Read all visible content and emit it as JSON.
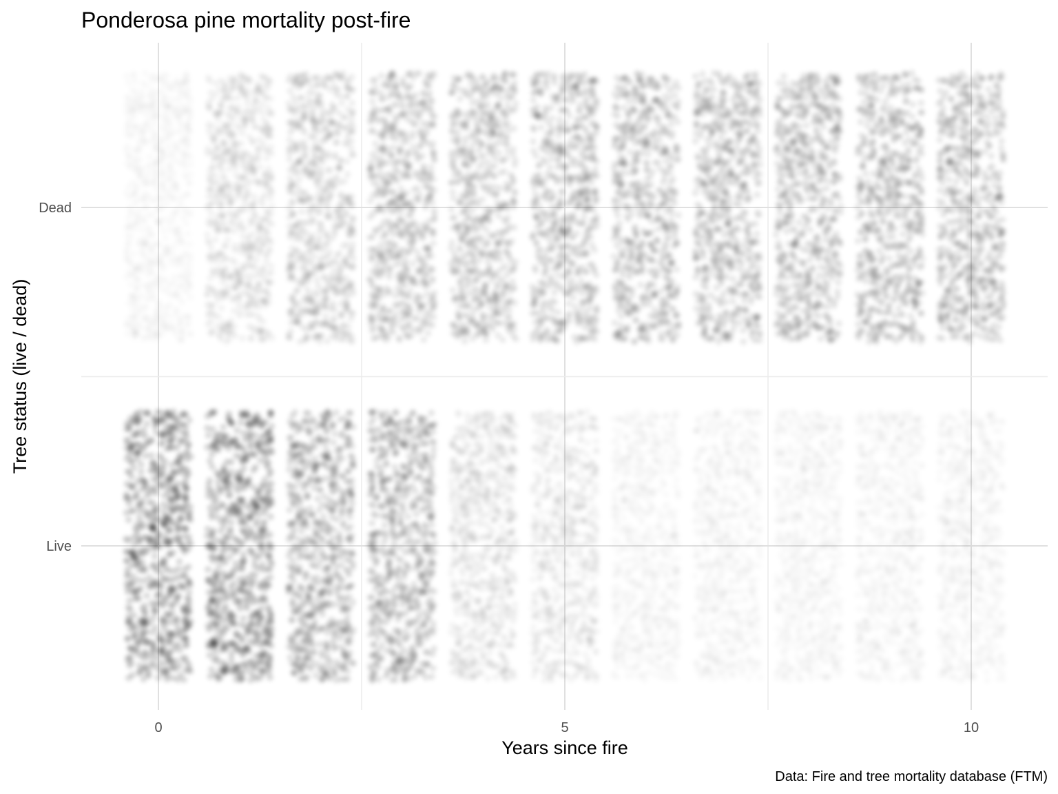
{
  "chart_data": {
    "type": "scatter",
    "title": "Ponderosa pine mortality post-fire",
    "xlabel": "Years since fire",
    "ylabel": "Tree status (live / dead)",
    "caption": "Data: Fire and tree mortality database (FTM)",
    "x_ticks": [
      "0",
      "5",
      "10"
    ],
    "y_categories": [
      "Live",
      "Dead"
    ],
    "xlim": [
      -0.47,
      10.47
    ],
    "grid": true,
    "point_color": "#000000",
    "jitter": true,
    "relative_density": {
      "x": [
        0,
        1,
        2,
        3,
        4,
        5,
        6,
        7,
        8,
        9,
        10
      ],
      "Live": [
        1.0,
        1.0,
        0.75,
        0.72,
        0.32,
        0.26,
        0.1,
        0.1,
        0.08,
        0.08,
        0.07
      ],
      "Dead": [
        0.06,
        0.35,
        0.45,
        0.55,
        0.57,
        0.6,
        0.6,
        0.61,
        0.61,
        0.62,
        0.62
      ]
    }
  }
}
